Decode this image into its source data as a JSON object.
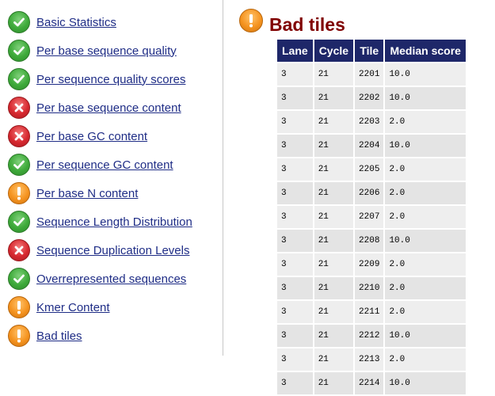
{
  "sidebar": {
    "items": [
      {
        "label": "Basic Statistics",
        "status": "pass"
      },
      {
        "label": "Per base sequence quality",
        "status": "pass"
      },
      {
        "label": "Per sequence quality scores",
        "status": "pass"
      },
      {
        "label": "Per base sequence content",
        "status": "fail"
      },
      {
        "label": "Per base GC content",
        "status": "fail"
      },
      {
        "label": "Per sequence GC content",
        "status": "pass"
      },
      {
        "label": "Per base N content",
        "status": "warn"
      },
      {
        "label": "Sequence Length Distribution",
        "status": "pass"
      },
      {
        "label": "Sequence Duplication Levels",
        "status": "fail"
      },
      {
        "label": "Overrepresented sequences",
        "status": "pass"
      },
      {
        "label": "Kmer Content",
        "status": "warn"
      },
      {
        "label": "Bad tiles",
        "status": "warn"
      }
    ]
  },
  "icons": {
    "pass": "check-icon",
    "fail": "cross-icon",
    "warn": "exclamation-icon"
  },
  "colors": {
    "link": "#1f2d86",
    "title": "#800000",
    "table_header": "#1e2769",
    "pass": "#3eaa3a",
    "fail": "#d7282f",
    "warn": "#f5931f"
  },
  "main": {
    "title": "Bad tiles",
    "title_status": "warn",
    "table": {
      "headers": [
        "Lane",
        "Cycle",
        "Tile",
        "Median score"
      ],
      "rows": [
        [
          "3",
          "21",
          "2201",
          "10.0"
        ],
        [
          "3",
          "21",
          "2202",
          "10.0"
        ],
        [
          "3",
          "21",
          "2203",
          "2.0"
        ],
        [
          "3",
          "21",
          "2204",
          "10.0"
        ],
        [
          "3",
          "21",
          "2205",
          "2.0"
        ],
        [
          "3",
          "21",
          "2206",
          "2.0"
        ],
        [
          "3",
          "21",
          "2207",
          "2.0"
        ],
        [
          "3",
          "21",
          "2208",
          "10.0"
        ],
        [
          "3",
          "21",
          "2209",
          "2.0"
        ],
        [
          "3",
          "21",
          "2210",
          "2.0"
        ],
        [
          "3",
          "21",
          "2211",
          "2.0"
        ],
        [
          "3",
          "21",
          "2212",
          "10.0"
        ],
        [
          "3",
          "21",
          "2213",
          "2.0"
        ],
        [
          "3",
          "21",
          "2214",
          "10.0"
        ]
      ]
    }
  }
}
